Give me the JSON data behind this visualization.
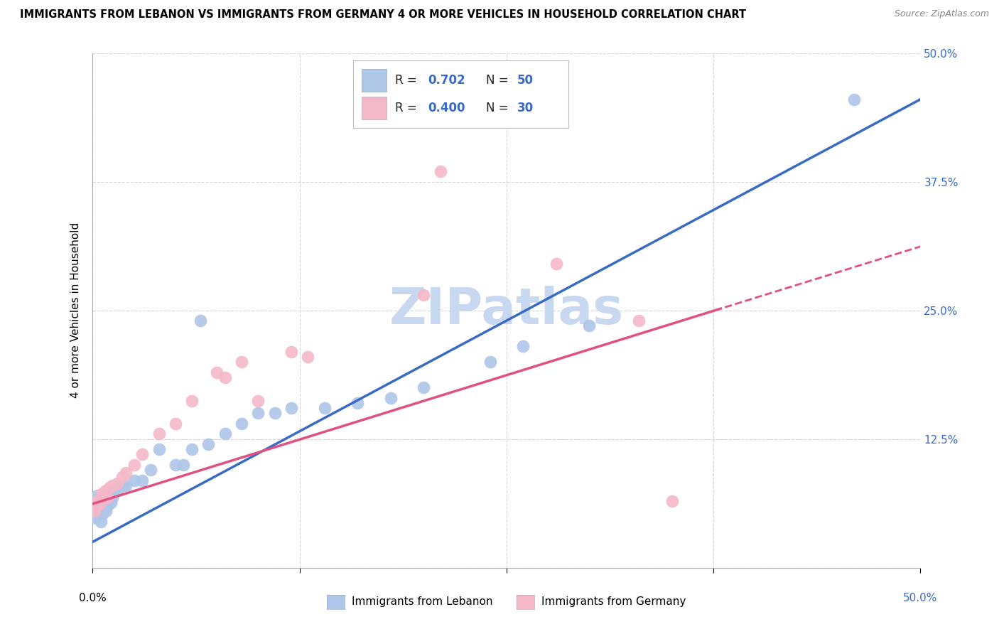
{
  "title": "IMMIGRANTS FROM LEBANON VS IMMIGRANTS FROM GERMANY 4 OR MORE VEHICLES IN HOUSEHOLD CORRELATION CHART",
  "source": "Source: ZipAtlas.com",
  "ylabel": "4 or more Vehicles in Household",
  "xlim": [
    0.0,
    0.5
  ],
  "ylim": [
    0.0,
    0.5
  ],
  "R_lebanon": 0.702,
  "N_lebanon": 50,
  "R_germany": 0.4,
  "N_germany": 30,
  "lebanon_color": "#AEC6E8",
  "germany_color": "#F4B8C8",
  "line_lebanon_color": "#3A6BC4",
  "line_germany_color": "#E05080",
  "watermark_text": "ZIPatlas",
  "watermark_color": "#C8D8F0",
  "bg_color": "#FFFFFF",
  "grid_color": "#CCCCCC",
  "tick_label_color_right": "#3A6BC4",
  "lebanon_x": [
    0.001,
    0.001,
    0.002,
    0.002,
    0.002,
    0.003,
    0.003,
    0.003,
    0.004,
    0.004,
    0.005,
    0.005,
    0.005,
    0.006,
    0.006,
    0.007,
    0.007,
    0.008,
    0.008,
    0.009,
    0.01,
    0.01,
    0.011,
    0.012,
    0.013,
    0.015,
    0.018,
    0.02,
    0.025,
    0.03,
    0.035,
    0.04,
    0.05,
    0.055,
    0.06,
    0.065,
    0.07,
    0.08,
    0.09,
    0.1,
    0.11,
    0.12,
    0.14,
    0.16,
    0.18,
    0.2,
    0.24,
    0.26,
    0.3,
    0.46
  ],
  "lebanon_y": [
    0.05,
    0.055,
    0.048,
    0.058,
    0.065,
    0.052,
    0.06,
    0.07,
    0.055,
    0.068,
    0.045,
    0.058,
    0.068,
    0.052,
    0.065,
    0.058,
    0.07,
    0.055,
    0.065,
    0.06,
    0.065,
    0.072,
    0.063,
    0.068,
    0.075,
    0.075,
    0.08,
    0.08,
    0.085,
    0.085,
    0.095,
    0.115,
    0.1,
    0.1,
    0.115,
    0.24,
    0.12,
    0.13,
    0.14,
    0.15,
    0.15,
    0.155,
    0.155,
    0.16,
    0.165,
    0.175,
    0.2,
    0.215,
    0.235,
    0.455
  ],
  "germany_x": [
    0.001,
    0.002,
    0.003,
    0.004,
    0.005,
    0.006,
    0.007,
    0.008,
    0.009,
    0.01,
    0.012,
    0.015,
    0.018,
    0.02,
    0.025,
    0.03,
    0.04,
    0.05,
    0.06,
    0.075,
    0.08,
    0.09,
    0.1,
    0.12,
    0.13,
    0.2,
    0.21,
    0.28,
    0.33,
    0.35
  ],
  "germany_y": [
    0.055,
    0.06,
    0.065,
    0.062,
    0.068,
    0.072,
    0.07,
    0.075,
    0.068,
    0.078,
    0.08,
    0.082,
    0.088,
    0.092,
    0.1,
    0.11,
    0.13,
    0.14,
    0.162,
    0.19,
    0.185,
    0.2,
    0.162,
    0.21,
    0.205,
    0.265,
    0.385,
    0.295,
    0.24,
    0.065
  ]
}
